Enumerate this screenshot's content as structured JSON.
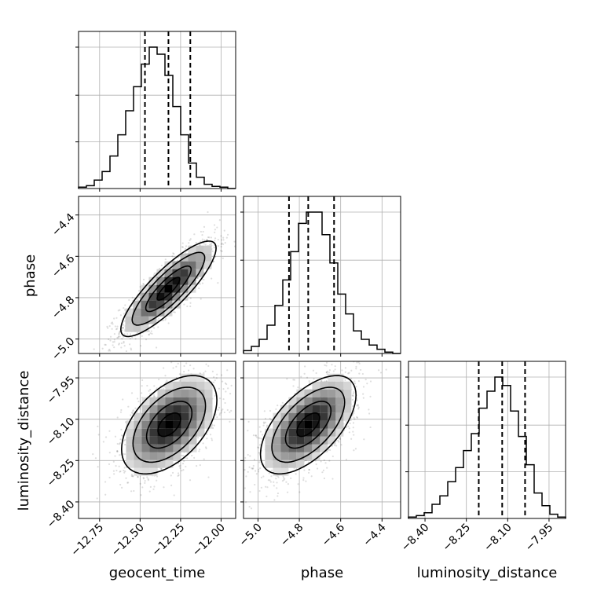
{
  "chart_data": {
    "type": "corner",
    "parameters": [
      {
        "name": "geocent_time",
        "range": [
          -12.88,
          -11.91
        ],
        "ticks": [
          -12.75,
          -12.5,
          -12.25,
          -12.0
        ],
        "tick_labels": [
          "−12.75",
          "−12.50",
          "−12.25",
          "−12.00"
        ],
        "quantiles": [
          -12.47,
          -12.325,
          -12.19
        ],
        "histogram": {
          "bin_edges": [
            -12.88,
            -12.8315,
            -12.783,
            -12.7345,
            -12.686,
            -12.6375,
            -12.589,
            -12.5405,
            -12.492,
            -12.4435,
            -12.395,
            -12.3465,
            -12.298,
            -12.2495,
            -12.201,
            -12.1525,
            -12.104,
            -12.0555,
            -12.007,
            -11.9585,
            -11.91
          ],
          "counts": [
            1,
            2,
            6,
            12,
            23,
            38,
            55,
            72,
            88,
            100,
            95,
            80,
            58,
            38,
            18,
            8,
            3,
            1.5,
            1,
            0
          ]
        }
      },
      {
        "name": "phase",
        "range": [
          -5.07,
          -4.31
        ],
        "ticks": [
          -5.0,
          -4.8,
          -4.6,
          -4.4
        ],
        "tick_labels": [
          "−5.0",
          "−4.8",
          "−4.6",
          "−4.4"
        ],
        "quantiles": [
          -4.85,
          -4.757,
          -4.632
        ],
        "histogram": {
          "bin_edges": [
            -5.07,
            -5.032,
            -4.994,
            -4.956,
            -4.918,
            -4.88,
            -4.842,
            -4.804,
            -4.766,
            -4.728,
            -4.69,
            -4.652,
            -4.614,
            -4.576,
            -4.538,
            -4.5,
            -4.462,
            -4.424,
            -4.386,
            -4.348,
            -4.31
          ],
          "counts": [
            2,
            5,
            10,
            20,
            34,
            52,
            72,
            92,
            100,
            100,
            84,
            64,
            42,
            28,
            16,
            10,
            6,
            3,
            1,
            0
          ]
        }
      },
      {
        "name": "luminosity_distance",
        "range": [
          -8.46,
          -7.89
        ],
        "ticks": [
          -8.4,
          -8.25,
          -8.1,
          -7.95
        ],
        "tick_labels": [
          "−8.40",
          "−8.25",
          "−8.10",
          "−7.95"
        ],
        "quantiles": [
          -8.205,
          -8.12,
          -8.037
        ],
        "histogram": {
          "bin_edges": [
            -8.46,
            -8.4315,
            -8.403,
            -8.3745,
            -8.346,
            -8.3175,
            -8.289,
            -8.2605,
            -8.232,
            -8.2035,
            -8.175,
            -8.1465,
            -8.118,
            -8.0895,
            -8.061,
            -8.0325,
            -8.004,
            -7.9755,
            -7.947,
            -7.9185,
            -7.89
          ],
          "counts": [
            1,
            2,
            4,
            10,
            16,
            26,
            36,
            48,
            60,
            78,
            90,
            100,
            94,
            76,
            58,
            38,
            18,
            9,
            3,
            1
          ]
        }
      }
    ],
    "pairs": [
      {
        "x_param": 0,
        "y_param": 1,
        "center": [
          -12.325,
          -4.757
        ],
        "std": [
          0.14,
          0.11
        ],
        "correlation": 0.85,
        "contour_levels": [
          0.5,
          1.0,
          1.6,
          2.1
        ]
      },
      {
        "x_param": 0,
        "y_param": 2,
        "center": [
          -12.32,
          -8.12
        ],
        "std": [
          0.14,
          0.085
        ],
        "correlation": 0.5,
        "contour_levels": [
          0.5,
          1.0,
          1.6,
          2.1
        ]
      },
      {
        "x_param": 1,
        "y_param": 2,
        "center": [
          -4.757,
          -8.12
        ],
        "std": [
          0.11,
          0.085
        ],
        "correlation": 0.6,
        "contour_levels": [
          0.5,
          1.0,
          1.6,
          2.1
        ]
      }
    ],
    "grid": true,
    "colors": {
      "line": "#000000",
      "grid": "#b0b0b0",
      "scatter": "#000000"
    }
  }
}
